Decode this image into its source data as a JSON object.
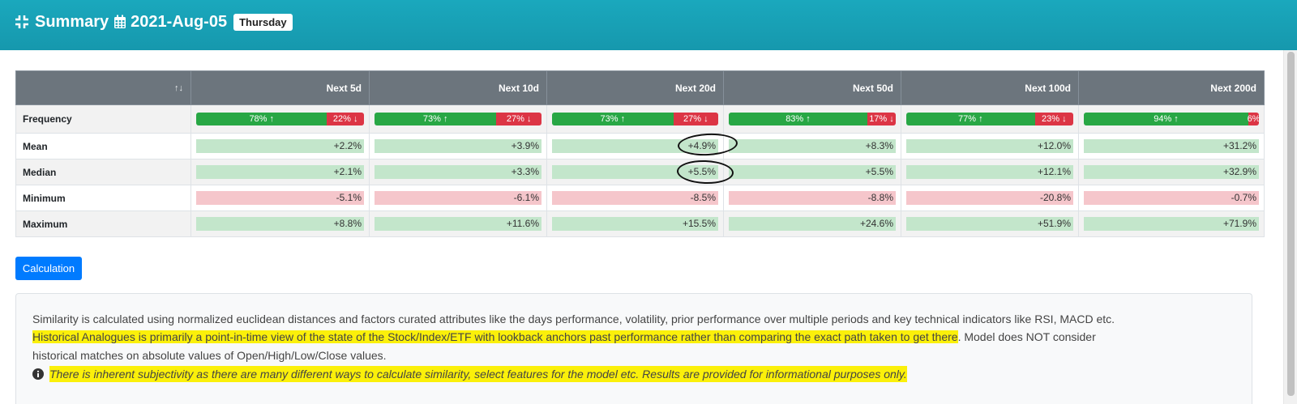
{
  "header": {
    "title": "Summary",
    "date": "2021-Aug-05",
    "day": "Thursday"
  },
  "colors": {
    "header_bg": "#1aa8bd",
    "up": "#28a745",
    "down": "#dc3545",
    "pos_bar": "#c3e6cb",
    "neg_bar": "#f5c6cb",
    "button": "#007bff",
    "highlight": "#fbf00a"
  },
  "table": {
    "sort_indicator": "↑↓",
    "columns": [
      "Next 5d",
      "Next 10d",
      "Next 20d",
      "Next 50d",
      "Next 100d",
      "Next 200d"
    ],
    "rows": [
      {
        "label": "Frequency",
        "type": "freq",
        "cells": [
          {
            "up": 78,
            "down": 22,
            "up_label": "78% ↑",
            "down_label": "22% ↓"
          },
          {
            "up": 73,
            "down": 27,
            "up_label": "73% ↑",
            "down_label": "27% ↓"
          },
          {
            "up": 73,
            "down": 27,
            "up_label": "73% ↑",
            "down_label": "27% ↓"
          },
          {
            "up": 83,
            "down": 17,
            "up_label": "83% ↑",
            "down_label": "17% ↓"
          },
          {
            "up": 77,
            "down": 23,
            "up_label": "77% ↑",
            "down_label": "23% ↓"
          },
          {
            "up": 94,
            "down": 6,
            "up_label": "94% ↑",
            "down_label": "6%"
          }
        ]
      },
      {
        "label": "Mean",
        "type": "value",
        "cells": [
          {
            "text": "+2.2%",
            "sign": "pos"
          },
          {
            "text": "+3.9%",
            "sign": "pos"
          },
          {
            "text": "+4.9%",
            "sign": "pos"
          },
          {
            "text": "+8.3%",
            "sign": "pos"
          },
          {
            "text": "+12.0%",
            "sign": "pos"
          },
          {
            "text": "+31.2%",
            "sign": "pos"
          }
        ]
      },
      {
        "label": "Median",
        "type": "value",
        "cells": [
          {
            "text": "+2.1%",
            "sign": "pos"
          },
          {
            "text": "+3.3%",
            "sign": "pos"
          },
          {
            "text": "+5.5%",
            "sign": "pos"
          },
          {
            "text": "+5.5%",
            "sign": "pos"
          },
          {
            "text": "+12.1%",
            "sign": "pos"
          },
          {
            "text": "+32.9%",
            "sign": "pos"
          }
        ]
      },
      {
        "label": "Minimum",
        "type": "value",
        "cells": [
          {
            "text": "-5.1%",
            "sign": "neg"
          },
          {
            "text": "-6.1%",
            "sign": "neg"
          },
          {
            "text": "-8.5%",
            "sign": "neg"
          },
          {
            "text": "-8.8%",
            "sign": "neg"
          },
          {
            "text": "-20.8%",
            "sign": "neg"
          },
          {
            "text": "-0.7%",
            "sign": "neg"
          }
        ]
      },
      {
        "label": "Maximum",
        "type": "value",
        "cells": [
          {
            "text": "+8.8%",
            "sign": "pos"
          },
          {
            "text": "+11.6%",
            "sign": "pos"
          },
          {
            "text": "+15.5%",
            "sign": "pos"
          },
          {
            "text": "+24.6%",
            "sign": "pos"
          },
          {
            "text": "+51.9%",
            "sign": "pos"
          },
          {
            "text": "+71.9%",
            "sign": "pos"
          }
        ]
      }
    ]
  },
  "button": {
    "label": "Calculation"
  },
  "note": {
    "line1": "Similarity is calculated using normalized euclidean distances and factors curated attributes like the days performance, volatility, prior performance over multiple periods and key technical indicators like RSI, MACD etc.",
    "line2_highlight": "Historical Analogues is primarily a point-in-time view of the state of the Stock/Index/ETF with lookback anchors past performance rather than comparing the exact path taken to get there",
    "line2_rest": ". Model does NOT consider",
    "line3": "historical matches on absolute values of Open/High/Low/Close values.",
    "line4": "There is inherent subjectivity as there are many different ways to calculate similarity, select features for the model etc. Results are provided for informational purposes only."
  }
}
